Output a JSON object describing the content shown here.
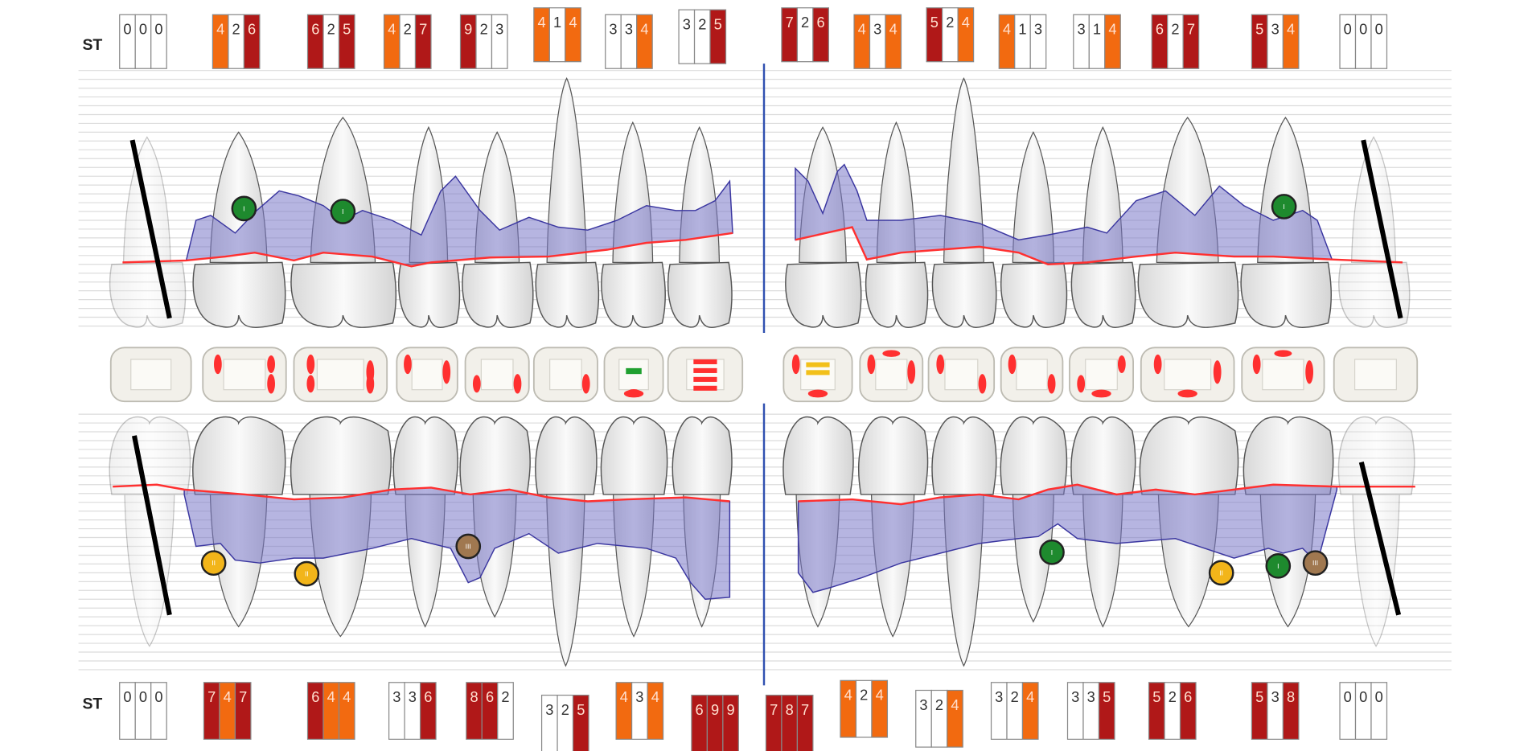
{
  "st_label": "ST",
  "colors": {
    "white": "#ffffff",
    "moderate": "#f26a10",
    "severe": "#b01818",
    "attachment_area": "#7a78c8",
    "gingival_margin": "#ff3030",
    "furcation_I": "#1e8a2e",
    "furcation_II": "#f2b51a",
    "furcation_III": "#a07850",
    "midline": "#3050b0"
  },
  "upper_st": [
    [
      0,
      0,
      0
    ],
    [
      4,
      2,
      6
    ],
    [
      6,
      2,
      5
    ],
    [
      4,
      2,
      7
    ],
    [
      9,
      2,
      3
    ],
    [
      4,
      1,
      4
    ],
    [
      3,
      3,
      4
    ],
    [
      3,
      2,
      5
    ],
    [
      7,
      2,
      6
    ],
    [
      4,
      3,
      4
    ],
    [
      5,
      2,
      4
    ],
    [
      4,
      1,
      3
    ],
    [
      3,
      1,
      4
    ],
    [
      6,
      2,
      7
    ],
    [
      5,
      3,
      4
    ],
    [
      0,
      0,
      0
    ]
  ],
  "lower_st": [
    [
      0,
      0,
      0
    ],
    [
      7,
      4,
      7
    ],
    [
      6,
      4,
      4
    ],
    [
      3,
      3,
      6
    ],
    [
      8,
      6,
      2
    ],
    [
      3,
      2,
      5
    ],
    [
      4,
      3,
      4
    ],
    [
      6,
      9,
      9
    ],
    [
      7,
      8,
      7
    ],
    [
      4,
      2,
      4
    ],
    [
      3,
      2,
      4
    ],
    [
      3,
      2,
      4
    ],
    [
      3,
      3,
      5
    ],
    [
      5,
      2,
      6
    ],
    [
      5,
      3,
      8
    ],
    [
      0,
      0,
      0
    ]
  ],
  "furcations": [
    {
      "jaw": "upper",
      "tooth": "upper-left-molar-1",
      "grade": "I"
    },
    {
      "jaw": "upper",
      "tooth": "upper-left-molar-2",
      "grade": "I"
    },
    {
      "jaw": "upper",
      "tooth": "upper-right-molar-2",
      "grade": "I"
    },
    {
      "jaw": "lower",
      "tooth": "lower-left-molar-1",
      "grade": "II"
    },
    {
      "jaw": "lower",
      "tooth": "lower-left-molar-2",
      "grade": "II"
    },
    {
      "jaw": "lower",
      "tooth": "lower-left-premolar",
      "grade": "III"
    },
    {
      "jaw": "lower",
      "tooth": "lower-right-premolar",
      "grade": "I"
    },
    {
      "jaw": "lower",
      "tooth": "lower-right-molar-2",
      "grade": "II"
    },
    {
      "jaw": "lower",
      "tooth": "lower-right-molar-1a",
      "grade": "I"
    },
    {
      "jaw": "lower",
      "tooth": "lower-right-molar-1b",
      "grade": "III"
    }
  ]
}
